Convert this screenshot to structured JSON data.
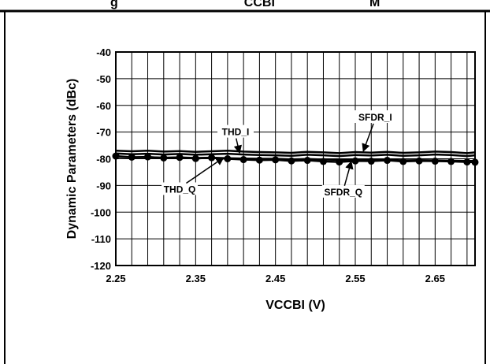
{
  "top_text": "g                                    CCBI                           M",
  "chart_data": {
    "type": "line",
    "xlabel": "VCCBI (V)",
    "ylabel": "Dynamic Parameters (dBc)",
    "xlim": [
      2.25,
      2.7
    ],
    "ylim": [
      -120,
      -40
    ],
    "x_ticks": [
      "2.25",
      "2.35",
      "2.45",
      "2.55",
      "2.65"
    ],
    "y_ticks": [
      "-40",
      "-50",
      "-60",
      "-70",
      "-80",
      "-90",
      "-100",
      "-110",
      "-120"
    ],
    "grid": true,
    "x": [
      2.25,
      2.27,
      2.29,
      2.31,
      2.33,
      2.35,
      2.37,
      2.39,
      2.41,
      2.43,
      2.45,
      2.47,
      2.49,
      2.51,
      2.53,
      2.55,
      2.57,
      2.59,
      2.61,
      2.63,
      2.65,
      2.67,
      2.69,
      2.7
    ],
    "series": [
      {
        "name": "SFDR_I",
        "marker": "none",
        "color": "#000000",
        "values": [
          -77.0,
          -77.2,
          -77.0,
          -77.3,
          -77.1,
          -77.4,
          -77.2,
          -77.0,
          -77.3,
          -77.5,
          -77.6,
          -77.8,
          -77.4,
          -77.6,
          -77.9,
          -77.5,
          -77.7,
          -77.4,
          -77.8,
          -77.6,
          -77.3,
          -77.5,
          -77.9,
          -77.6
        ]
      },
      {
        "name": "THD_I",
        "marker": "none",
        "color": "#000000",
        "values": [
          -78.0,
          -78.3,
          -78.1,
          -78.4,
          -78.2,
          -78.5,
          -78.3,
          -78.1,
          -78.4,
          -78.6,
          -78.7,
          -78.9,
          -78.5,
          -78.7,
          -79.0,
          -78.6,
          -78.8,
          -78.5,
          -78.9,
          -78.7,
          -78.4,
          -78.6,
          -79.0,
          -78.7
        ]
      },
      {
        "name": "THD_Q",
        "marker": "none",
        "color": "#000000",
        "values": [
          -79.3,
          -79.5,
          -79.4,
          -79.6,
          -79.5,
          -79.7,
          -79.6,
          -79.8,
          -79.9,
          -80.0,
          -80.0,
          -80.2,
          -80.1,
          -80.3,
          -80.4,
          -80.3,
          -80.5,
          -80.4,
          -80.6,
          -80.5,
          -80.6,
          -80.7,
          -80.8,
          -80.8
        ]
      },
      {
        "name": "SFDR_Q",
        "marker": "circle",
        "color": "#000000",
        "values": [
          -79.0,
          -79.4,
          -79.3,
          -79.7,
          -79.5,
          -79.9,
          -79.6,
          -80.0,
          -80.3,
          -80.5,
          -80.4,
          -80.8,
          -80.6,
          -81.0,
          -81.2,
          -80.8,
          -80.9,
          -80.6,
          -81.0,
          -80.8,
          -80.9,
          -81.0,
          -81.2,
          -81.3
        ]
      }
    ],
    "annotations": [
      {
        "text": "THD_I",
        "x": 2.4,
        "y": -70.0,
        "arrow_x": 2.405,
        "arrow_y": -77.8
      },
      {
        "text": "SFDR_I",
        "x": 2.575,
        "y": -64.5,
        "arrow_x": 2.56,
        "arrow_y": -77.2
      },
      {
        "text": "THD_Q",
        "x": 2.33,
        "y": -91.5,
        "arrow_x": 2.385,
        "arrow_y": -79.6
      },
      {
        "text": "SFDR_Q",
        "x": 2.535,
        "y": -92.5,
        "arrow_x": 2.545,
        "arrow_y": -81.0
      }
    ]
  }
}
